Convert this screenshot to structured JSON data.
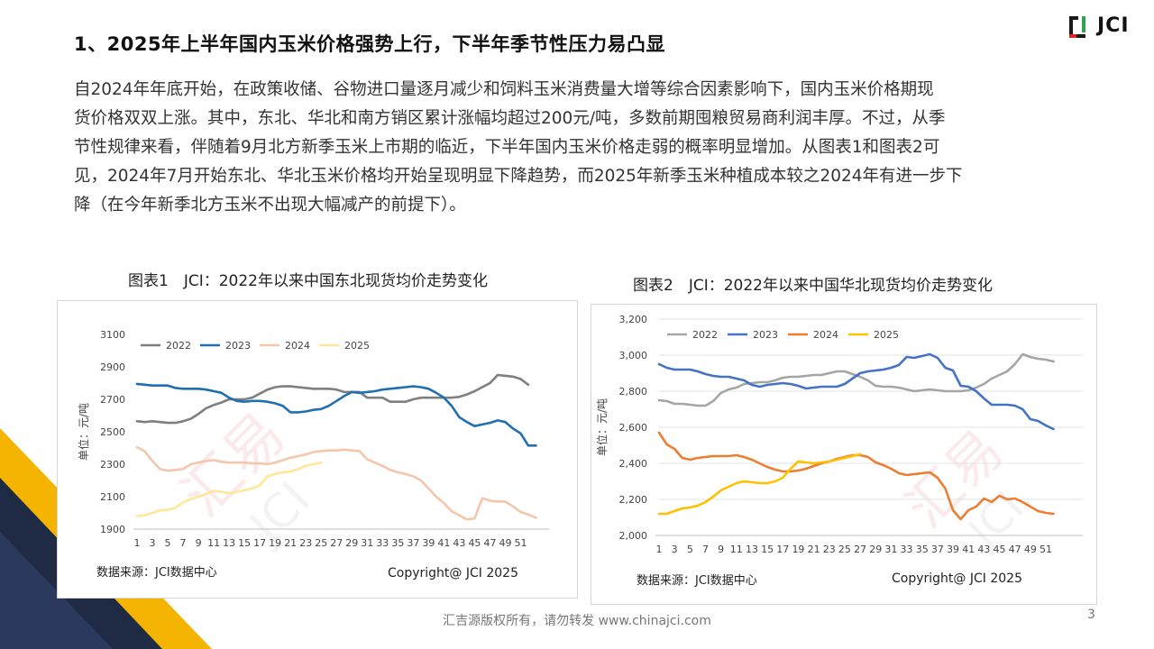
{
  "header": {
    "title": "1、2025年上半年国内玉米价格强势上行，下半年季节性压力易凸显",
    "logo_text": "JCI"
  },
  "body": {
    "lines": [
      "自2024年年底开始，在政策收储、谷物进口量逐月减少和饲料玉米消费量大增等综合因素影响下，国内玉米价格期现",
      "货价格双双上涨。其中，东北、华北和南方销区累计涨幅均超过200元/吨，多数前期囤粮贸易商利润丰厚。不过，从季",
      "节性规律来看，伴随着9月北方新季玉米上市期的临近，下半年国内玉米价格走弱的概率明显增加。从图表1和图表2可",
      "见，2024年7月开始东北、华北玉米价格均开始呈现明显下降趋势，而2025年新季玉米种植成本较之2024年有进一步下",
      "降（在今年新季北方玉米不出现大幅减产的前提下）。"
    ]
  },
  "colors": {
    "c2022_a": "#7f7f7f",
    "c2023_a": "#1f6fb2",
    "c2024_a": "#f4c6ac",
    "c2025_a": "#ffe699",
    "c2022_b": "#a5a5a5",
    "c2023_b": "#4472c4",
    "c2024_b": "#ed7d31",
    "c2025_b": "#ffc000",
    "deco_dark": "#1f2a44",
    "deco_gold": "#f5b400"
  },
  "chart_data": [
    {
      "type": "line",
      "title": "图表1　JCI：2022年以来中国东北现货均价走势变化",
      "ylabel": "",
      "xlabel": "",
      "ylim": [
        1900,
        3100
      ],
      "yticks": [
        1900,
        2100,
        2300,
        2500,
        2700,
        2900,
        3100
      ],
      "xticks": [
        "1",
        "3",
        "5",
        "7",
        "9",
        "11",
        "13",
        "15",
        "17",
        "19",
        "21",
        "23",
        "25",
        "27",
        "29",
        "31",
        "33",
        "35",
        "37",
        "39",
        "41",
        "43",
        "45",
        "47",
        "49",
        "51"
      ],
      "watermark": "汇易",
      "watermark2": "JCI",
      "source": "数据来源：JCI数据中心",
      "copyright": "Copyright@ JCI 2025",
      "series": [
        {
          "name": "2022",
          "values": [
            2565,
            2560,
            2565,
            2560,
            2555,
            2555,
            2565,
            2580,
            2610,
            2645,
            2665,
            2680,
            2700,
            2700,
            2700,
            2710,
            2735,
            2760,
            2775,
            2780,
            2780,
            2775,
            2770,
            2765,
            2765,
            2765,
            2760,
            2745,
            2745,
            2745,
            2710,
            2710,
            2710,
            2685,
            2685,
            2685,
            2700,
            2710,
            2710,
            2710,
            2710,
            2710,
            2715,
            2730,
            2750,
            2775,
            2800,
            2850,
            2845,
            2840,
            2825,
            2790
          ]
        },
        {
          "name": "2023",
          "values": [
            2795,
            2790,
            2785,
            2785,
            2785,
            2770,
            2765,
            2765,
            2765,
            2760,
            2750,
            2740,
            2710,
            2690,
            2685,
            2690,
            2690,
            2685,
            2675,
            2660,
            2620,
            2620,
            2625,
            2635,
            2640,
            2660,
            2690,
            2720,
            2745,
            2740,
            2745,
            2750,
            2760,
            2765,
            2770,
            2775,
            2780,
            2775,
            2765,
            2740,
            2710,
            2660,
            2590,
            2560,
            2535,
            2545,
            2555,
            2570,
            2560,
            2520,
            2490,
            2415,
            2415
          ]
        },
        {
          "name": "2024",
          "values": [
            2405,
            2380,
            2320,
            2270,
            2260,
            2265,
            2270,
            2300,
            2310,
            2320,
            2325,
            2315,
            2310,
            2310,
            2310,
            2305,
            2305,
            2300,
            2310,
            2325,
            2340,
            2350,
            2360,
            2375,
            2380,
            2385,
            2385,
            2390,
            2385,
            2380,
            2330,
            2310,
            2290,
            2265,
            2250,
            2240,
            2225,
            2200,
            2150,
            2100,
            2060,
            2010,
            1985,
            1960,
            1965,
            2090,
            2075,
            2070,
            2070,
            2040,
            2005,
            1990,
            1970
          ]
        },
        {
          "name": "2025",
          "values": [
            1980,
            1985,
            2000,
            2015,
            2020,
            2030,
            2065,
            2085,
            2100,
            2115,
            2135,
            2130,
            2120,
            2130,
            2140,
            2150,
            2170,
            2225,
            2240,
            2250,
            2255,
            2270,
            2290,
            2300,
            2310
          ]
        }
      ]
    },
    {
      "type": "line",
      "title": "图表2　JCI：2022年以来中国华北现货均价走势变化",
      "ylabel": "单位：元/吨",
      "xlabel": "",
      "ylim": [
        2000,
        3200
      ],
      "yticks": [
        2000,
        2200,
        2400,
        2600,
        2800,
        3000,
        3200
      ],
      "ytick_labels": [
        "2,000",
        "2,200",
        "2,400",
        "2,600",
        "2,800",
        "3,000",
        "3,200"
      ],
      "xticks": [
        "1",
        "3",
        "5",
        "7",
        "9",
        "11",
        "13",
        "15",
        "17",
        "19",
        "21",
        "23",
        "25",
        "27",
        "29",
        "31",
        "33",
        "35",
        "37",
        "39",
        "41",
        "43",
        "45",
        "47",
        "49",
        "51"
      ],
      "watermark": "汇易",
      "watermark2": "JCI",
      "source": "数据来源：JCI数据中心",
      "copyright": "Copyright@ JCI 2025",
      "series": [
        {
          "name": "2022",
          "values": [
            2750,
            2745,
            2730,
            2730,
            2725,
            2720,
            2720,
            2745,
            2790,
            2810,
            2820,
            2840,
            2845,
            2850,
            2850,
            2860,
            2875,
            2880,
            2880,
            2885,
            2890,
            2890,
            2900,
            2910,
            2910,
            2895,
            2880,
            2860,
            2830,
            2825,
            2825,
            2820,
            2810,
            2800,
            2805,
            2810,
            2805,
            2800,
            2800,
            2800,
            2805,
            2820,
            2840,
            2870,
            2890,
            2910,
            2950,
            3005,
            2990,
            2980,
            2975,
            2965
          ]
        },
        {
          "name": "2023",
          "values": [
            2950,
            2930,
            2920,
            2920,
            2920,
            2910,
            2895,
            2885,
            2880,
            2880,
            2870,
            2860,
            2835,
            2825,
            2835,
            2840,
            2845,
            2840,
            2830,
            2815,
            2820,
            2825,
            2825,
            2825,
            2840,
            2870,
            2900,
            2910,
            2915,
            2920,
            2930,
            2945,
            2990,
            2985,
            2995,
            3005,
            2985,
            2930,
            2915,
            2830,
            2825,
            2800,
            2760,
            2725,
            2725,
            2725,
            2720,
            2700,
            2645,
            2635,
            2610,
            2590
          ]
        },
        {
          "name": "2024",
          "values": [
            2570,
            2505,
            2480,
            2430,
            2420,
            2430,
            2435,
            2440,
            2440,
            2440,
            2445,
            2435,
            2420,
            2400,
            2380,
            2365,
            2355,
            2355,
            2360,
            2370,
            2385,
            2400,
            2410,
            2425,
            2435,
            2445,
            2445,
            2435,
            2405,
            2390,
            2370,
            2345,
            2335,
            2340,
            2345,
            2350,
            2320,
            2260,
            2140,
            2090,
            2140,
            2160,
            2205,
            2185,
            2220,
            2200,
            2205,
            2185,
            2160,
            2135,
            2125,
            2120
          ]
        },
        {
          "name": "2025",
          "values": [
            2120,
            2120,
            2135,
            2150,
            2155,
            2165,
            2185,
            2215,
            2250,
            2270,
            2290,
            2300,
            2295,
            2290,
            2290,
            2300,
            2320,
            2370,
            2410,
            2405,
            2400,
            2405,
            2410,
            2420,
            2430,
            2440,
            2450
          ]
        }
      ]
    }
  ],
  "footer": {
    "text": "汇吉源版权所有，请勿转发 www.chinajci.com",
    "page": "3"
  }
}
